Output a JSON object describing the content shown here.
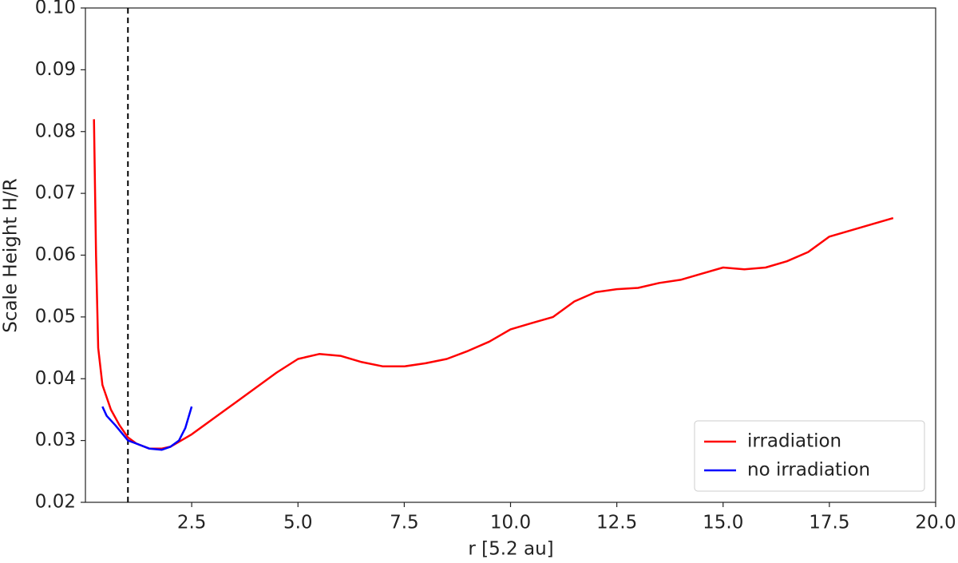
{
  "chart_data": {
    "type": "line",
    "xlabel": "r [5.2 au]",
    "ylabel": "Scale Height H/R",
    "xlim": [
      0,
      20
    ],
    "ylim": [
      0.02,
      0.1
    ],
    "xticks": [
      2.5,
      {
        "value": 5,
        "label": "5.0"
      },
      7.5,
      {
        "value": 10,
        "label": "10.0"
      },
      12.5,
      {
        "value": 15,
        "label": "15.0"
      },
      17.5,
      {
        "value": 20,
        "label": "20.0"
      }
    ],
    "yticks": [
      0.02,
      0.03,
      0.04,
      0.05,
      0.06,
      0.07,
      0.08,
      0.09,
      {
        "value": 0.1,
        "label": "0.10"
      }
    ],
    "vlines": [
      1.0
    ],
    "legend": "lower right",
    "series": [
      {
        "name": "irradiation",
        "color": "#ff0000",
        "x": [
          0.2,
          0.25,
          0.3,
          0.4,
          0.6,
          0.8,
          1.0,
          1.2,
          1.5,
          1.8,
          2.0,
          2.5,
          3.0,
          3.5,
          4.0,
          4.5,
          5.0,
          5.5,
          6.0,
          6.5,
          7.0,
          7.5,
          8.0,
          8.5,
          9.0,
          9.5,
          10.0,
          10.5,
          11.0,
          11.5,
          12.0,
          12.5,
          13.0,
          13.5,
          14.0,
          14.5,
          15.0,
          15.5,
          16.0,
          16.5,
          17.0,
          17.5,
          18.0,
          18.5,
          19.0
        ],
        "values": [
          0.082,
          0.06,
          0.045,
          0.039,
          0.035,
          0.0325,
          0.0305,
          0.0295,
          0.0287,
          0.0287,
          0.029,
          0.031,
          0.0335,
          0.036,
          0.0385,
          0.041,
          0.0432,
          0.044,
          0.0437,
          0.0427,
          0.042,
          0.042,
          0.0425,
          0.0432,
          0.0445,
          0.046,
          0.048,
          0.049,
          0.05,
          0.0525,
          0.054,
          0.0545,
          0.0547,
          0.0555,
          0.056,
          0.057,
          0.058,
          0.0577,
          0.058,
          0.059,
          0.0605,
          0.063,
          0.064,
          0.065,
          0.066
        ]
      },
      {
        "name": "no irradiation",
        "color": "#0000ff",
        "x": [
          0.4,
          0.5,
          0.7,
          1.0,
          1.2,
          1.5,
          1.8,
          2.0,
          2.2,
          2.35,
          2.5
        ],
        "values": [
          0.0355,
          0.034,
          0.0325,
          0.03,
          0.0295,
          0.0287,
          0.0285,
          0.029,
          0.03,
          0.032,
          0.0355
        ]
      }
    ]
  }
}
